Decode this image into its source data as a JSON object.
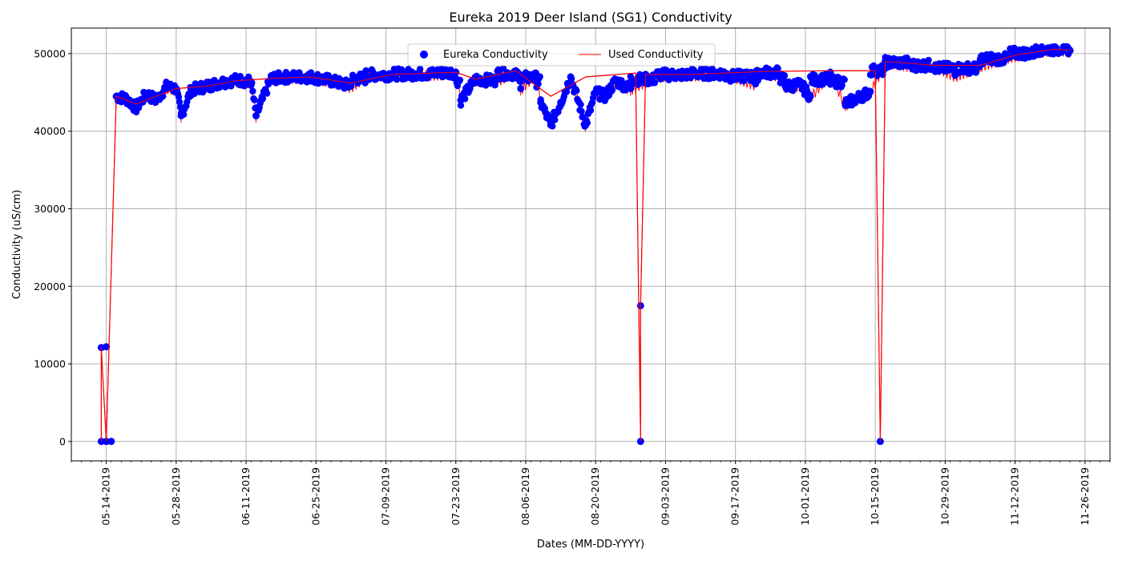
{
  "chart_data": {
    "type": "scatter",
    "title": "Eureka 2019 Deer Island (SG1) Conductivity",
    "xlabel": "Dates (MM-DD-YYYY)",
    "ylabel": "Conductivity (uS/cm)",
    "xlim": [
      "2019-05-07",
      "2019-12-01"
    ],
    "ylim": [
      -2500,
      53300
    ],
    "grid": true,
    "legend_placement": "upper center",
    "x_tick_labels": [
      "05-14-2019",
      "05-28-2019",
      "06-11-2019",
      "06-25-2019",
      "07-09-2019",
      "07-23-2019",
      "08-06-2019",
      "08-20-2019",
      "09-03-2019",
      "09-17-2019",
      "10-01-2019",
      "10-15-2019",
      "10-29-2019",
      "11-12-2019",
      "11-26-2019"
    ],
    "y_ticks": [
      0,
      10000,
      20000,
      30000,
      40000,
      50000
    ],
    "y_tick_labels": [
      "0",
      "10000",
      "20000",
      "30000",
      "40000",
      "50000"
    ],
    "colors": {
      "scatter": "#0000ff",
      "line": "#ff0000",
      "grid": "#b0b0b0",
      "axis": "#000000"
    },
    "series": [
      {
        "name": "Eureka Conductivity",
        "kind": "scatter",
        "points": [
          [
            "2019-05-13",
            0
          ],
          [
            "2019-05-13",
            12100
          ],
          [
            "2019-05-14",
            12200
          ],
          [
            "2019-05-14",
            0
          ],
          [
            "2019-05-15",
            0
          ],
          [
            "2019-05-16",
            44500
          ],
          [
            "2019-05-18",
            44200
          ],
          [
            "2019-05-20",
            43000
          ],
          [
            "2019-05-22",
            44800
          ],
          [
            "2019-05-24",
            44000
          ],
          [
            "2019-05-26",
            45700
          ],
          [
            "2019-05-28",
            45500
          ],
          [
            "2019-05-29",
            42000
          ],
          [
            "2019-05-31",
            45300
          ],
          [
            "2019-06-03",
            45800
          ],
          [
            "2019-06-06",
            46300
          ],
          [
            "2019-06-09",
            46600
          ],
          [
            "2019-06-12",
            46400
          ],
          [
            "2019-06-13",
            42000
          ],
          [
            "2019-06-16",
            46800
          ],
          [
            "2019-06-20",
            47000
          ],
          [
            "2019-06-24",
            47000
          ],
          [
            "2019-06-28",
            46500
          ],
          [
            "2019-07-02",
            45800
          ],
          [
            "2019-07-05",
            47200
          ],
          [
            "2019-07-10",
            47300
          ],
          [
            "2019-07-15",
            47400
          ],
          [
            "2019-07-19",
            47400
          ],
          [
            "2019-07-23",
            47600
          ],
          [
            "2019-07-24",
            44000
          ],
          [
            "2019-07-27",
            46700
          ],
          [
            "2019-07-31",
            46500
          ],
          [
            "2019-08-04",
            47800
          ],
          [
            "2019-08-05",
            45500
          ],
          [
            "2019-08-08",
            47500
          ],
          [
            "2019-08-09",
            43700
          ],
          [
            "2019-08-11",
            40800
          ],
          [
            "2019-08-13",
            43700
          ],
          [
            "2019-08-15",
            47000
          ],
          [
            "2019-08-18",
            40800
          ],
          [
            "2019-08-20",
            45000
          ],
          [
            "2019-08-22",
            44500
          ],
          [
            "2019-08-24",
            46500
          ],
          [
            "2019-08-27",
            45500
          ],
          [
            "2019-08-29",
            17500
          ],
          [
            "2019-08-29",
            0
          ],
          [
            "2019-09-01",
            47200
          ],
          [
            "2019-09-08",
            47300
          ],
          [
            "2019-09-15",
            47500
          ],
          [
            "2019-09-22",
            47700
          ],
          [
            "2019-09-21",
            46100
          ],
          [
            "2019-09-26",
            47200
          ],
          [
            "2019-09-27",
            45800
          ],
          [
            "2019-09-30",
            46000
          ],
          [
            "2019-10-02",
            44500
          ],
          [
            "2019-10-06",
            47600
          ],
          [
            "2019-10-09",
            43500
          ],
          [
            "2019-10-14",
            45100
          ],
          [
            "2019-10-16",
            0
          ],
          [
            "2019-10-17",
            49000
          ],
          [
            "2019-10-22",
            48500
          ],
          [
            "2019-10-27",
            48500
          ],
          [
            "2019-10-31",
            47200
          ],
          [
            "2019-11-05",
            48500
          ],
          [
            "2019-11-11",
            49700
          ],
          [
            "2019-11-16",
            50200
          ],
          [
            "2019-11-20",
            50700
          ],
          [
            "2019-11-23",
            50400
          ]
        ]
      },
      {
        "name": "Used Conductivity",
        "kind": "line",
        "points": [
          [
            "2019-05-13",
            0
          ],
          [
            "2019-05-13",
            12100
          ],
          [
            "2019-05-14",
            0
          ],
          [
            "2019-05-14",
            0
          ],
          [
            "2019-05-16",
            44500
          ],
          [
            "2019-05-20",
            43500
          ],
          [
            "2019-05-24",
            44500
          ],
          [
            "2019-05-28",
            45500
          ],
          [
            "2019-06-03",
            45800
          ],
          [
            "2019-06-09",
            46500
          ],
          [
            "2019-06-16",
            46800
          ],
          [
            "2019-06-24",
            47000
          ],
          [
            "2019-07-02",
            46200
          ],
          [
            "2019-07-10",
            47300
          ],
          [
            "2019-07-23",
            47600
          ],
          [
            "2019-07-27",
            46700
          ],
          [
            "2019-08-04",
            47800
          ],
          [
            "2019-08-11",
            44500
          ],
          [
            "2019-08-18",
            47000
          ],
          [
            "2019-08-28",
            47500
          ],
          [
            "2019-08-29",
            0
          ],
          [
            "2019-08-29",
            17500
          ],
          [
            "2019-08-30",
            47300
          ],
          [
            "2019-09-08",
            47300
          ],
          [
            "2019-09-22",
            47700
          ],
          [
            "2019-10-06",
            47800
          ],
          [
            "2019-10-15",
            47800
          ],
          [
            "2019-10-16",
            0
          ],
          [
            "2019-10-17",
            49000
          ],
          [
            "2019-10-27",
            48500
          ],
          [
            "2019-11-05",
            48500
          ],
          [
            "2019-11-12",
            49800
          ],
          [
            "2019-11-20",
            50600
          ],
          [
            "2019-11-23",
            50400
          ]
        ]
      }
    ]
  }
}
